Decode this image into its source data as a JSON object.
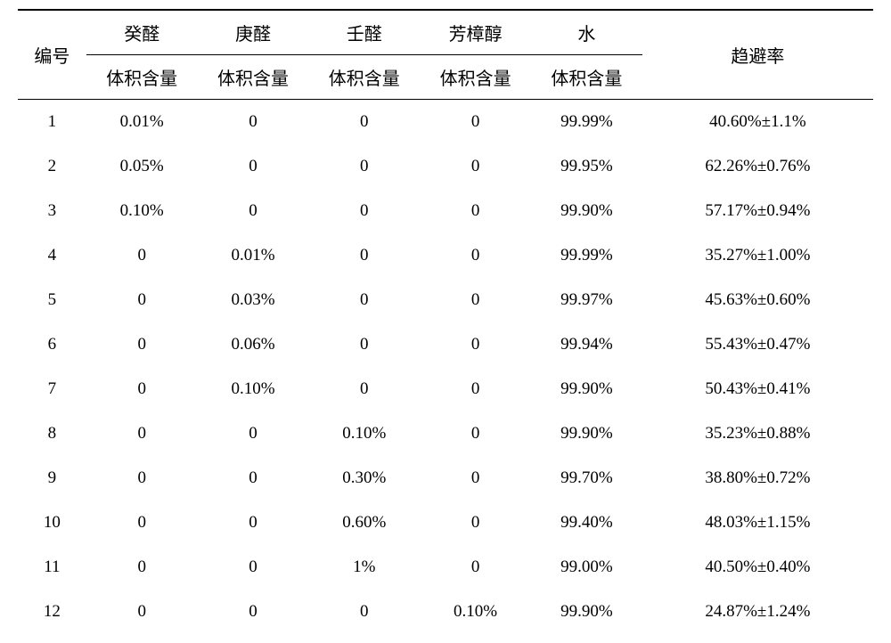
{
  "headers": {
    "row1": {
      "col0": "编号",
      "col1": "癸醛",
      "col2": "庚醛",
      "col3": "壬醛",
      "col4": "芳樟醇",
      "col5": "水",
      "col6": "趋避率"
    },
    "row2": {
      "sub": "体积含量"
    }
  },
  "rows": [
    {
      "num": "1",
      "c1": "0.01%",
      "c2": "0",
      "c3": "0",
      "c4": "0",
      "c5": "99.99%",
      "rate": "40.60%±1.1%"
    },
    {
      "num": "2",
      "c1": "0.05%",
      "c2": "0",
      "c3": "0",
      "c4": "0",
      "c5": "99.95%",
      "rate": "62.26%±0.76%"
    },
    {
      "num": "3",
      "c1": "0.10%",
      "c2": "0",
      "c3": "0",
      "c4": "0",
      "c5": "99.90%",
      "rate": "57.17%±0.94%"
    },
    {
      "num": "4",
      "c1": "0",
      "c2": "0.01%",
      "c3": "0",
      "c4": "0",
      "c5": "99.99%",
      "rate": "35.27%±1.00%"
    },
    {
      "num": "5",
      "c1": "0",
      "c2": "0.03%",
      "c3": "0",
      "c4": "0",
      "c5": "99.97%",
      "rate": "45.63%±0.60%"
    },
    {
      "num": "6",
      "c1": "0",
      "c2": "0.06%",
      "c3": "0",
      "c4": "0",
      "c5": "99.94%",
      "rate": "55.43%±0.47%"
    },
    {
      "num": "7",
      "c1": "0",
      "c2": "0.10%",
      "c3": "0",
      "c4": "0",
      "c5": "99.90%",
      "rate": "50.43%±0.41%"
    },
    {
      "num": "8",
      "c1": "0",
      "c2": "0",
      "c3": "0.10%",
      "c4": "0",
      "c5": "99.90%",
      "rate": "35.23%±0.88%"
    },
    {
      "num": "9",
      "c1": "0",
      "c2": "0",
      "c3": "0.30%",
      "c4": "0",
      "c5": "99.70%",
      "rate": "38.80%±0.72%"
    },
    {
      "num": "10",
      "c1": "0",
      "c2": "0",
      "c3": "0.60%",
      "c4": "0",
      "c5": "99.40%",
      "rate": "48.03%±1.15%"
    },
    {
      "num": "11",
      "c1": "0",
      "c2": "0",
      "c3": "1%",
      "c4": "0",
      "c5": "99.00%",
      "rate": "40.50%±0.40%"
    },
    {
      "num": "12",
      "c1": "0",
      "c2": "0",
      "c3": "0",
      "c4": "0.10%",
      "c5": "99.90%",
      "rate": "24.87%±1.24%"
    }
  ],
  "style": {
    "background_color": "#ffffff",
    "text_color": "#000000",
    "border_color": "#000000",
    "header_fontsize": 20,
    "body_fontsize": 19,
    "font_family": "SimSun",
    "top_border_width": 2,
    "inner_border_width": 1
  }
}
